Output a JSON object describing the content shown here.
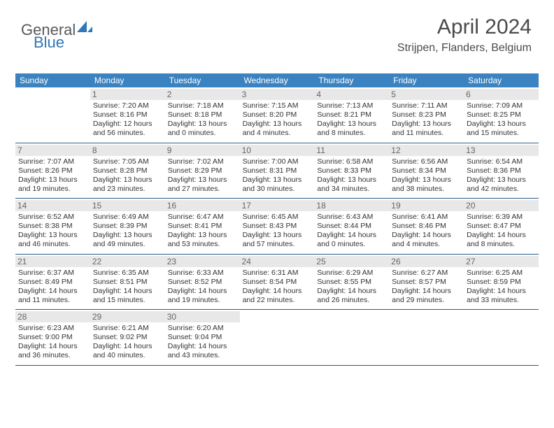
{
  "logo": {
    "part1": "General",
    "part2": "Blue"
  },
  "header": {
    "month_title": "April 2024",
    "location": "Strijpen, Flanders, Belgium"
  },
  "colors": {
    "header_bg": "#3b83c0",
    "daynum_bg": "#e8e8e8",
    "week_border": "#2b5a88"
  },
  "weekdays": [
    "Sunday",
    "Monday",
    "Tuesday",
    "Wednesday",
    "Thursday",
    "Friday",
    "Saturday"
  ],
  "days": [
    {
      "n": "",
      "sunrise": "",
      "sunset": "",
      "daylight": ""
    },
    {
      "n": "1",
      "sunrise": "7:20 AM",
      "sunset": "8:16 PM",
      "daylight": "12 hours and 56 minutes."
    },
    {
      "n": "2",
      "sunrise": "7:18 AM",
      "sunset": "8:18 PM",
      "daylight": "13 hours and 0 minutes."
    },
    {
      "n": "3",
      "sunrise": "7:15 AM",
      "sunset": "8:20 PM",
      "daylight": "13 hours and 4 minutes."
    },
    {
      "n": "4",
      "sunrise": "7:13 AM",
      "sunset": "8:21 PM",
      "daylight": "13 hours and 8 minutes."
    },
    {
      "n": "5",
      "sunrise": "7:11 AM",
      "sunset": "8:23 PM",
      "daylight": "13 hours and 11 minutes."
    },
    {
      "n": "6",
      "sunrise": "7:09 AM",
      "sunset": "8:25 PM",
      "daylight": "13 hours and 15 minutes."
    },
    {
      "n": "7",
      "sunrise": "7:07 AM",
      "sunset": "8:26 PM",
      "daylight": "13 hours and 19 minutes."
    },
    {
      "n": "8",
      "sunrise": "7:05 AM",
      "sunset": "8:28 PM",
      "daylight": "13 hours and 23 minutes."
    },
    {
      "n": "9",
      "sunrise": "7:02 AM",
      "sunset": "8:29 PM",
      "daylight": "13 hours and 27 minutes."
    },
    {
      "n": "10",
      "sunrise": "7:00 AM",
      "sunset": "8:31 PM",
      "daylight": "13 hours and 30 minutes."
    },
    {
      "n": "11",
      "sunrise": "6:58 AM",
      "sunset": "8:33 PM",
      "daylight": "13 hours and 34 minutes."
    },
    {
      "n": "12",
      "sunrise": "6:56 AM",
      "sunset": "8:34 PM",
      "daylight": "13 hours and 38 minutes."
    },
    {
      "n": "13",
      "sunrise": "6:54 AM",
      "sunset": "8:36 PM",
      "daylight": "13 hours and 42 minutes."
    },
    {
      "n": "14",
      "sunrise": "6:52 AM",
      "sunset": "8:38 PM",
      "daylight": "13 hours and 46 minutes."
    },
    {
      "n": "15",
      "sunrise": "6:49 AM",
      "sunset": "8:39 PM",
      "daylight": "13 hours and 49 minutes."
    },
    {
      "n": "16",
      "sunrise": "6:47 AM",
      "sunset": "8:41 PM",
      "daylight": "13 hours and 53 minutes."
    },
    {
      "n": "17",
      "sunrise": "6:45 AM",
      "sunset": "8:43 PM",
      "daylight": "13 hours and 57 minutes."
    },
    {
      "n": "18",
      "sunrise": "6:43 AM",
      "sunset": "8:44 PM",
      "daylight": "14 hours and 0 minutes."
    },
    {
      "n": "19",
      "sunrise": "6:41 AM",
      "sunset": "8:46 PM",
      "daylight": "14 hours and 4 minutes."
    },
    {
      "n": "20",
      "sunrise": "6:39 AM",
      "sunset": "8:47 PM",
      "daylight": "14 hours and 8 minutes."
    },
    {
      "n": "21",
      "sunrise": "6:37 AM",
      "sunset": "8:49 PM",
      "daylight": "14 hours and 11 minutes."
    },
    {
      "n": "22",
      "sunrise": "6:35 AM",
      "sunset": "8:51 PM",
      "daylight": "14 hours and 15 minutes."
    },
    {
      "n": "23",
      "sunrise": "6:33 AM",
      "sunset": "8:52 PM",
      "daylight": "14 hours and 19 minutes."
    },
    {
      "n": "24",
      "sunrise": "6:31 AM",
      "sunset": "8:54 PM",
      "daylight": "14 hours and 22 minutes."
    },
    {
      "n": "25",
      "sunrise": "6:29 AM",
      "sunset": "8:55 PM",
      "daylight": "14 hours and 26 minutes."
    },
    {
      "n": "26",
      "sunrise": "6:27 AM",
      "sunset": "8:57 PM",
      "daylight": "14 hours and 29 minutes."
    },
    {
      "n": "27",
      "sunrise": "6:25 AM",
      "sunset": "8:59 PM",
      "daylight": "14 hours and 33 minutes."
    },
    {
      "n": "28",
      "sunrise": "6:23 AM",
      "sunset": "9:00 PM",
      "daylight": "14 hours and 36 minutes."
    },
    {
      "n": "29",
      "sunrise": "6:21 AM",
      "sunset": "9:02 PM",
      "daylight": "14 hours and 40 minutes."
    },
    {
      "n": "30",
      "sunrise": "6:20 AM",
      "sunset": "9:04 PM",
      "daylight": "14 hours and 43 minutes."
    },
    {
      "n": "",
      "sunrise": "",
      "sunset": "",
      "daylight": ""
    },
    {
      "n": "",
      "sunrise": "",
      "sunset": "",
      "daylight": ""
    },
    {
      "n": "",
      "sunrise": "",
      "sunset": "",
      "daylight": ""
    },
    {
      "n": "",
      "sunrise": "",
      "sunset": "",
      "daylight": ""
    }
  ],
  "labels": {
    "sunrise_prefix": "Sunrise: ",
    "sunset_prefix": "Sunset: ",
    "daylight_prefix": "Daylight: "
  }
}
